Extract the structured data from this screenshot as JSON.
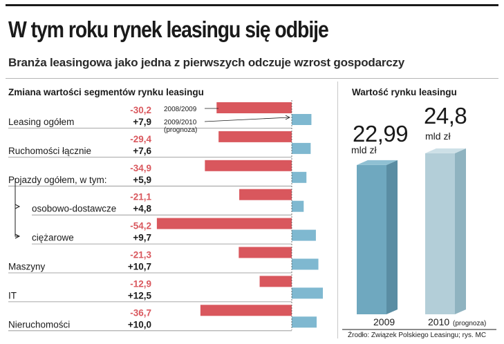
{
  "header": {
    "title": "W tym roku rynek leasingu się odbije",
    "subtitle": "Branża leasingowa jako jedna z pierwszych odczuje wzrost gospodarczy"
  },
  "source": "Źrodło: Związek Polskiego Leasingu;  rys. MC",
  "colors": {
    "series_2009": "#d9575d",
    "series_2010": "#7fb8d0",
    "neg_text": "#d9575d",
    "bar_2009": "#6fa8bf",
    "bar_2010": "#b3ced8"
  },
  "chart_data": [
    {
      "type": "bar",
      "orientation": "horizontal",
      "title": "Zmiana wartości segmentów rynku leasingu",
      "categories": [
        "Leasing ogółem",
        "Ruchomości łącznie",
        "Pojazdy ogółem, w tym:",
        "osobowo-dostawcze",
        "ciężarowe",
        "Maszyny",
        "IT",
        "Nieruchomości"
      ],
      "series": [
        {
          "name": "2008/2009",
          "labels": [
            "-30,2",
            "-29,4",
            "-34,9",
            "-21,1",
            "-54,2",
            "-21,3",
            "-12,9",
            "-36,7"
          ],
          "values": [
            -30.2,
            -29.4,
            -34.9,
            -21.1,
            -54.2,
            -21.3,
            -12.9,
            -36.7
          ]
        },
        {
          "name": "2009/2010",
          "name_note": "(prognoza)",
          "labels": [
            "+7,9",
            "+7,6",
            "+5,9",
            "+4,8",
            "+9,7",
            "+10,7",
            "+12,5",
            "+10,0"
          ],
          "values": [
            7.9,
            7.6,
            5.9,
            4.8,
            9.7,
            10.7,
            12.5,
            10.0
          ]
        }
      ]
    },
    {
      "type": "bar",
      "title": "Wartość rynku leasingu",
      "categories": [
        "2009",
        "2010"
      ],
      "category_notes": [
        "",
        "(prognoza)"
      ],
      "values": [
        22.99,
        24.8
      ],
      "value_labels": [
        "22,99",
        "24,8"
      ],
      "unit": "mld zł"
    }
  ]
}
